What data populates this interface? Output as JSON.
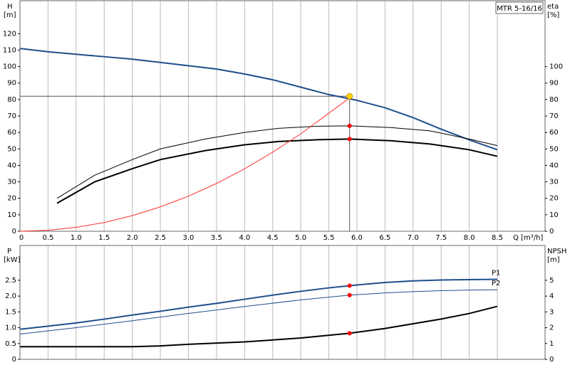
{
  "chart_data": [
    {
      "type": "line",
      "title": "MTR 5-16/16",
      "ylabel": "H",
      "yunit": "[m]",
      "y2label": "eta",
      "y2unit": "[%]",
      "xlabel": "Q [m³/h]",
      "xlim": [
        0,
        9.35
      ],
      "ylim": [
        0,
        140
      ],
      "y2lim": [
        0,
        140
      ],
      "xticks": [
        0,
        0.5,
        {
          "value": 1,
          "label": "1.0"
        },
        1.5,
        {
          "value": 2,
          "label": "2.0"
        },
        2.5,
        {
          "value": 3,
          "label": "3.0"
        },
        3.5,
        {
          "value": 4,
          "label": "4.0"
        },
        4.5,
        {
          "value": 5,
          "label": "5.0"
        },
        5.5,
        {
          "value": 6,
          "label": "6.0"
        },
        6.5,
        {
          "value": 7,
          "label": "7.0"
        },
        7.5,
        {
          "value": 8,
          "label": "8.0"
        },
        8.5
      ],
      "yticks": [
        0,
        10,
        20,
        30,
        40,
        50,
        60,
        70,
        80,
        90,
        100,
        110,
        120
      ],
      "y2ticks": [
        0,
        10,
        20,
        30,
        40,
        50,
        60,
        70,
        80,
        90,
        100
      ],
      "grid": true,
      "duty_point": {
        "x": 5.87,
        "y": 82,
        "color": "#ffd700"
      },
      "series": [
        {
          "color": "#1f4e8c",
          "width": 2,
          "x": [
            0,
            0.5,
            1,
            1.5,
            2,
            2.5,
            3,
            3.5,
            4,
            4.5,
            5,
            5.5,
            6,
            6.5,
            7,
            7.5,
            8,
            8.5
          ],
          "values": [
            111,
            109,
            107.5,
            106,
            104.5,
            102.5,
            100.5,
            98.5,
            95.5,
            92,
            87.5,
            83,
            79.5,
            75,
            69,
            62,
            55.5,
            49.5
          ]
        },
        {
          "color": "#000000",
          "width": 1,
          "axis": "y2",
          "x": [
            0.66,
            1.33,
            2,
            2.5,
            3.3,
            4,
            4.6,
            5.3,
            5.87,
            6.6,
            7.3,
            8,
            8.5
          ],
          "values": [
            20,
            34,
            43.5,
            50,
            56,
            60,
            62.5,
            63.8,
            64,
            63,
            61,
            56,
            52
          ]
        },
        {
          "color": "#000000",
          "width": 2,
          "axis": "y2",
          "x": [
            0.66,
            1.33,
            2,
            2.5,
            3.3,
            4,
            4.6,
            5.3,
            5.87,
            6.6,
            7.3,
            8,
            8.5
          ],
          "values": [
            17,
            30,
            38,
            43.5,
            49,
            52.5,
            54.5,
            55.6,
            56,
            55,
            53,
            49.5,
            45.5
          ]
        },
        {
          "color": "#ff3030",
          "width": 1,
          "x": [
            0,
            0.5,
            1,
            1.5,
            2,
            2.5,
            3,
            3.5,
            4,
            4.5,
            5,
            5.5,
            5.87
          ],
          "values": [
            0,
            0.6,
            2.4,
            5.3,
            9.5,
            14.8,
            21.3,
            29,
            37.9,
            48,
            59.2,
            71.7,
            81
          ]
        },
        {
          "color": "#ff0000",
          "marker": true,
          "axis": "y2",
          "x": [
            5.87,
            5.87
          ],
          "values": [
            64,
            56
          ]
        }
      ]
    },
    {
      "type": "line",
      "ylabel": "P",
      "yunit": "[kW]",
      "y2label": "NPSH",
      "y2unit": "[m]",
      "xlim": [
        0,
        9.35
      ],
      "ylim": [
        0,
        3.6
      ],
      "y2lim": [
        0,
        7.2
      ],
      "xticks": [
        0,
        0.5,
        1,
        1.5,
        2,
        2.5,
        3,
        3.5,
        4,
        4.5,
        5,
        5.5,
        6,
        6.5,
        7,
        7.5,
        8,
        8.5
      ],
      "yticks": [
        0,
        0.5,
        {
          "value": 1,
          "label": "1.0"
        },
        1.5,
        {
          "value": 2,
          "label": "2.0"
        },
        2.5
      ],
      "y2ticks": [
        0,
        1,
        2,
        3,
        4,
        5
      ],
      "grid": true,
      "series": [
        {
          "name": "P1",
          "color": "#1f4e8c",
          "width": 2,
          "x": [
            0,
            0.5,
            1,
            1.5,
            2,
            2.5,
            3,
            3.5,
            4,
            4.5,
            5,
            5.5,
            5.87,
            6.5,
            7,
            7.5,
            8,
            8.5
          ],
          "values": [
            0.95,
            1.05,
            1.15,
            1.27,
            1.4,
            1.52,
            1.65,
            1.77,
            1.9,
            2.03,
            2.15,
            2.26,
            2.33,
            2.43,
            2.48,
            2.51,
            2.52,
            2.53
          ]
        },
        {
          "name": "P2",
          "color": "#1f4e8c",
          "width": 1,
          "x": [
            0,
            1,
            2,
            3,
            4,
            5,
            5.87,
            6.5,
            7,
            7.5,
            8,
            8.5
          ],
          "values": [
            0.8,
            1,
            1.22,
            1.45,
            1.67,
            1.88,
            2.03,
            2.1,
            2.14,
            2.17,
            2.19,
            2.2
          ]
        },
        {
          "color": "#000000",
          "width": 2,
          "axis": "y2",
          "x": [
            0,
            1,
            2,
            2.5,
            3,
            4,
            5,
            5.87,
            6.5,
            7,
            7.5,
            8,
            8.5
          ],
          "values": [
            0.8,
            0.8,
            0.8,
            0.85,
            0.95,
            1.1,
            1.35,
            1.65,
            1.95,
            2.25,
            2.55,
            2.9,
            3.35
          ]
        },
        {
          "color": "#ff0000",
          "marker": true,
          "x": [
            5.87,
            5.87
          ],
          "values": [
            2.33,
            2.03
          ]
        },
        {
          "color": "#ff0000",
          "marker": true,
          "axis": "y2",
          "x": [
            5.87
          ],
          "values": [
            1.65
          ]
        }
      ]
    }
  ]
}
